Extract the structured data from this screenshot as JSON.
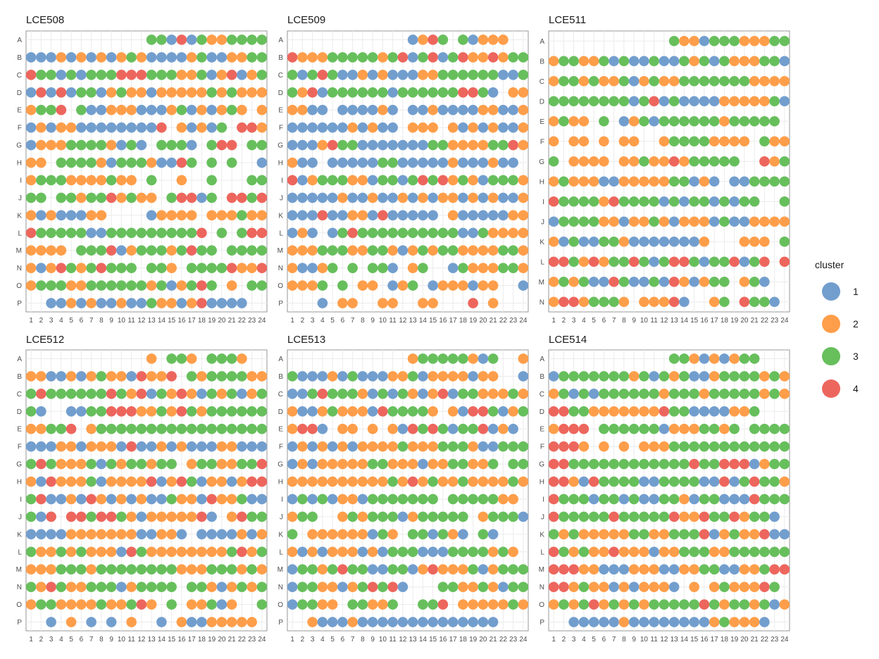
{
  "chart_data": {
    "type": "scatter",
    "description_free": true,
    "columns": [
      "1",
      "2",
      "3",
      "4",
      "5",
      "6",
      "7",
      "8",
      "9",
      "10",
      "11",
      "12",
      "13",
      "14",
      "15",
      "16",
      "17",
      "18",
      "19",
      "20",
      "21",
      "22",
      "23",
      "24"
    ],
    "colors": {
      "1": "#729ECE",
      "2": "#FF9E4A",
      "3": "#67BF5C",
      "4": "#ED665D"
    },
    "legend": {
      "title": "cluster",
      "entries": [
        "1",
        "2",
        "3",
        "4"
      ],
      "placement": "right"
    },
    "grid": true,
    "plates": [
      {
        "name": "LCE508",
        "rows": [
          "A",
          "B",
          "C",
          "D",
          "E",
          "F",
          "G",
          "H",
          "I",
          "J",
          "K",
          "L",
          "M",
          "N",
          "O",
          "P"
        ],
        "grid": [
          "............331413223333",
          "111212121232111123112233",
          "433131333444333223124123",
          "141413312322122222323222",
          "2334.31122211123121232.2",
          "12122111111114.21213.442",
          "122233332131.3331.344.33",
          "22.33332133321143.3.3..1",
          "23332222322.3..2..3...33",
          "33.3323342322.34413.4434",
          "21211122....12222.222322",
          "433333113333333334.3.344",
          "2222.33341233323433.3333",
          "21243234333.332.33334224",
          "2333223333332312343.2.33",
          "..11212112113221241111.."
        ]
      },
      {
        "name": "LCE509",
        "rows": [
          "A",
          "B",
          "C",
          "D",
          "E",
          "F",
          "G",
          "H",
          "I",
          "J",
          "K",
          "L",
          "M",
          "N",
          "O",
          "P"
        ],
        "grid": [
          "............1243.31222..",
          "422233333234134134224233",
          "313431121211122333333113",
          "324133333313333334431.22",
          "2211.111121.112111122112",
          "11111121211.222.21212112",
          "111243311111113322223342",
          "211.1111133111112111211.",
          "412333221331343423213332",
          "111112112112121221212112",
          "111411221411111.21111122",
          "121.134333333333311322222",
          "222333223321232332222332",
          "21123.3.331.23..13222332",
          "2223.3.22.123.1222122..1",
          "...1.22..22..22...4.2..."
        ]
      },
      {
        "name": "LCE511",
        "rows": [
          "A",
          "B",
          "C",
          "D",
          "E",
          "F",
          "G",
          "H",
          "I",
          "J",
          "K",
          "L",
          "M",
          "N"
        ],
        "grid": [
          "............322133322233",
          "233223131131132313222331",
          "233232231232233333332222",
          "333333331341311112222231",
          "2322.3.1231333333233333",
          "2.22.2.22..233332222.322",
          "3.2222.223224233333..423",
          "23222112222233121.113333",
          "433332433331313313133..3",
          "133332212232122213112222",
          "2131133211111112...222.3",
          "4432423343134431334134.4",
          "232311431131421233.231..",
          "24423332.22241..23.4331"
        ]
      },
      {
        "name": "LCE512",
        "rows": [
          "A",
          "B",
          "C",
          "D",
          "E",
          "F",
          "G",
          "H",
          "I",
          "J",
          "K",
          "L",
          "M",
          "N",
          "O",
          "P"
        ],
        "grid": [
          "............2.332.3332..",
          "221121232214224.32333322",
          "343333334324132421323123",
          "31..113344422324323333333",
          "22334.233333333333333333",
          "111221222141121211122111",
          "343222313233233.23322334",
          "214222312222412431221244",
          "341121421212113221422311",
          "314.443443212222241.2433",
          "1111222222211221.11112121",
          "322323222143222222223423",
          "222333233333333222333232",
          "324322333123333.33212323",
          "2332222322342.3.22312..3",
          "..1.2.1.1.2..1.21122222.."
        ]
      },
      {
        "name": "LCE513",
        "rows": [
          "A",
          "B",
          "C",
          "D",
          "E",
          "F",
          "G",
          "H",
          "I",
          "J",
          "K",
          "L",
          "M",
          "N",
          "O",
          "P"
        ],
        "grid": [
          "............233333213..2",
          "311121311122312222122..1",
          "113433321313212413322232",
          "211232221433332.21443123",
          "2441.22.2.2143431334121",
          "121212122223222333211333",
          "121222223322212233223.33",
          "222222222232423223222232",
          "131312213333333.3333322",
          "233..2323331233333.2333124",
          "3.222222132.331321.31..",
          "21212221213331113333232.",
          "1332343311331242223123334",
          "133221234341...3322321333",
          "13322.33223..334.2222232",
          "..2111211111111111111.."
        ]
      },
      {
        "name": "LCE514",
        "rows": [
          "A",
          "B",
          "C",
          "D",
          "E",
          "F",
          "G",
          "H",
          "I",
          "J",
          "K",
          "L",
          "M",
          "N",
          "O",
          "P"
        ],
        "grid": [
          "............332121233...",
          "133333332313231123333232",
          "231313333332333233333232",
          "443322222224331111223.",
          "2444.33333312223323.3333",
          "4442.2.2.22233333333333333",
          "4433333333333343344412333",
          "44214333311333311413433223",
          "433313313113321331114333",
          "43333343333342243342331.2",
          "3232222233223334123224111",
          "432322422212233322333333",
          "4442211122211223311223443",
          "4423221212221.2.2322243",
          "232342323233333432332312",
          "..11111211111111232221.."
        ]
      }
    ]
  }
}
